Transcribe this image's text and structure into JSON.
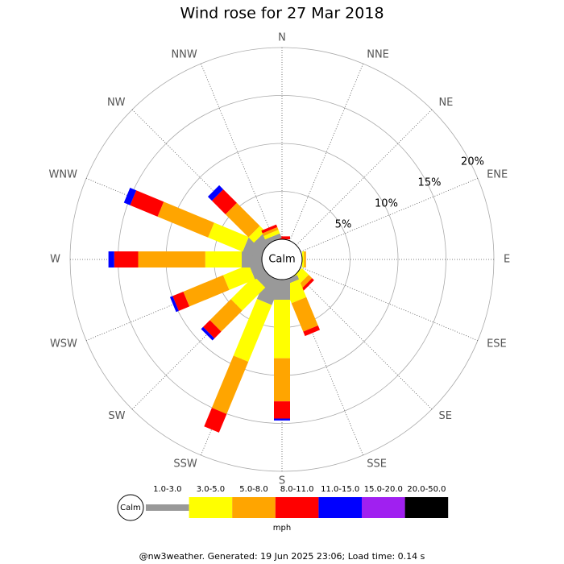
{
  "chart_data": {
    "type": "windrose",
    "title": "Wind rose for 27 Mar 2018",
    "categories": [
      "N",
      "NNE",
      "NE",
      "ENE",
      "E",
      "ESE",
      "SE",
      "SSE",
      "S",
      "SSW",
      "SW",
      "WSW",
      "W",
      "WNW",
      "NW",
      "NNW"
    ],
    "center_label": "Calm",
    "rlim": [
      0,
      20
    ],
    "rticks": [
      {
        "value": 5,
        "label": "5%"
      },
      {
        "value": 10,
        "label": "10%"
      },
      {
        "value": 15,
        "label": "15%"
      },
      {
        "value": 20,
        "label": "20%"
      }
    ],
    "legend_unit": "mph",
    "series": [
      {
        "name": "1.0-3.0",
        "color": "#999999",
        "values": [
          0,
          0,
          0,
          0,
          0,
          0,
          0,
          0.5,
          2.1,
          2.7,
          1.2,
          1.3,
          2.1,
          2.0,
          1.2,
          0.5
        ]
      },
      {
        "name": "3.0-5.0",
        "color": "#ffff00",
        "values": [
          0,
          0,
          0,
          0,
          0.2,
          0,
          1.0,
          2.0,
          6.1,
          6.4,
          3.4,
          2.9,
          3.8,
          3.9,
          0.8,
          0.4
        ]
      },
      {
        "name": "5.0-8.0",
        "color": "#ffa500",
        "values": [
          0,
          0,
          0,
          0,
          0.2,
          0,
          0.5,
          3.2,
          4.5,
          5.9,
          3.1,
          4.5,
          7.0,
          5.7,
          3.4,
          0.3
        ]
      },
      {
        "name": "8.0-11.0",
        "color": "#ff0000",
        "values": [
          0.3,
          0,
          0,
          0,
          0,
          0,
          0.3,
          0.5,
          1.8,
          2.1,
          1.0,
          1.2,
          2.5,
          3.1,
          2.0,
          0.3
        ]
      },
      {
        "name": "11.0-15.0",
        "color": "#0000ff",
        "values": [
          0,
          0,
          0,
          0,
          0,
          0,
          0,
          0,
          0.2,
          0,
          0.3,
          0.3,
          0.6,
          0.7,
          0.6,
          0
        ]
      },
      {
        "name": "15.0-20.0",
        "color": "#a020f0",
        "values": [
          0,
          0,
          0,
          0,
          0,
          0,
          0,
          0,
          0,
          0,
          0,
          0,
          0,
          0,
          0,
          0
        ]
      },
      {
        "name": "20.0-50.0",
        "color": "#000000",
        "values": [
          0,
          0,
          0,
          0,
          0,
          0,
          0,
          0,
          0,
          0,
          0,
          0,
          0,
          0,
          0,
          0
        ]
      }
    ],
    "footer": "@nw3weather. Generated: 19 Jun 2025 23:06; Load time: 0.14 s"
  }
}
